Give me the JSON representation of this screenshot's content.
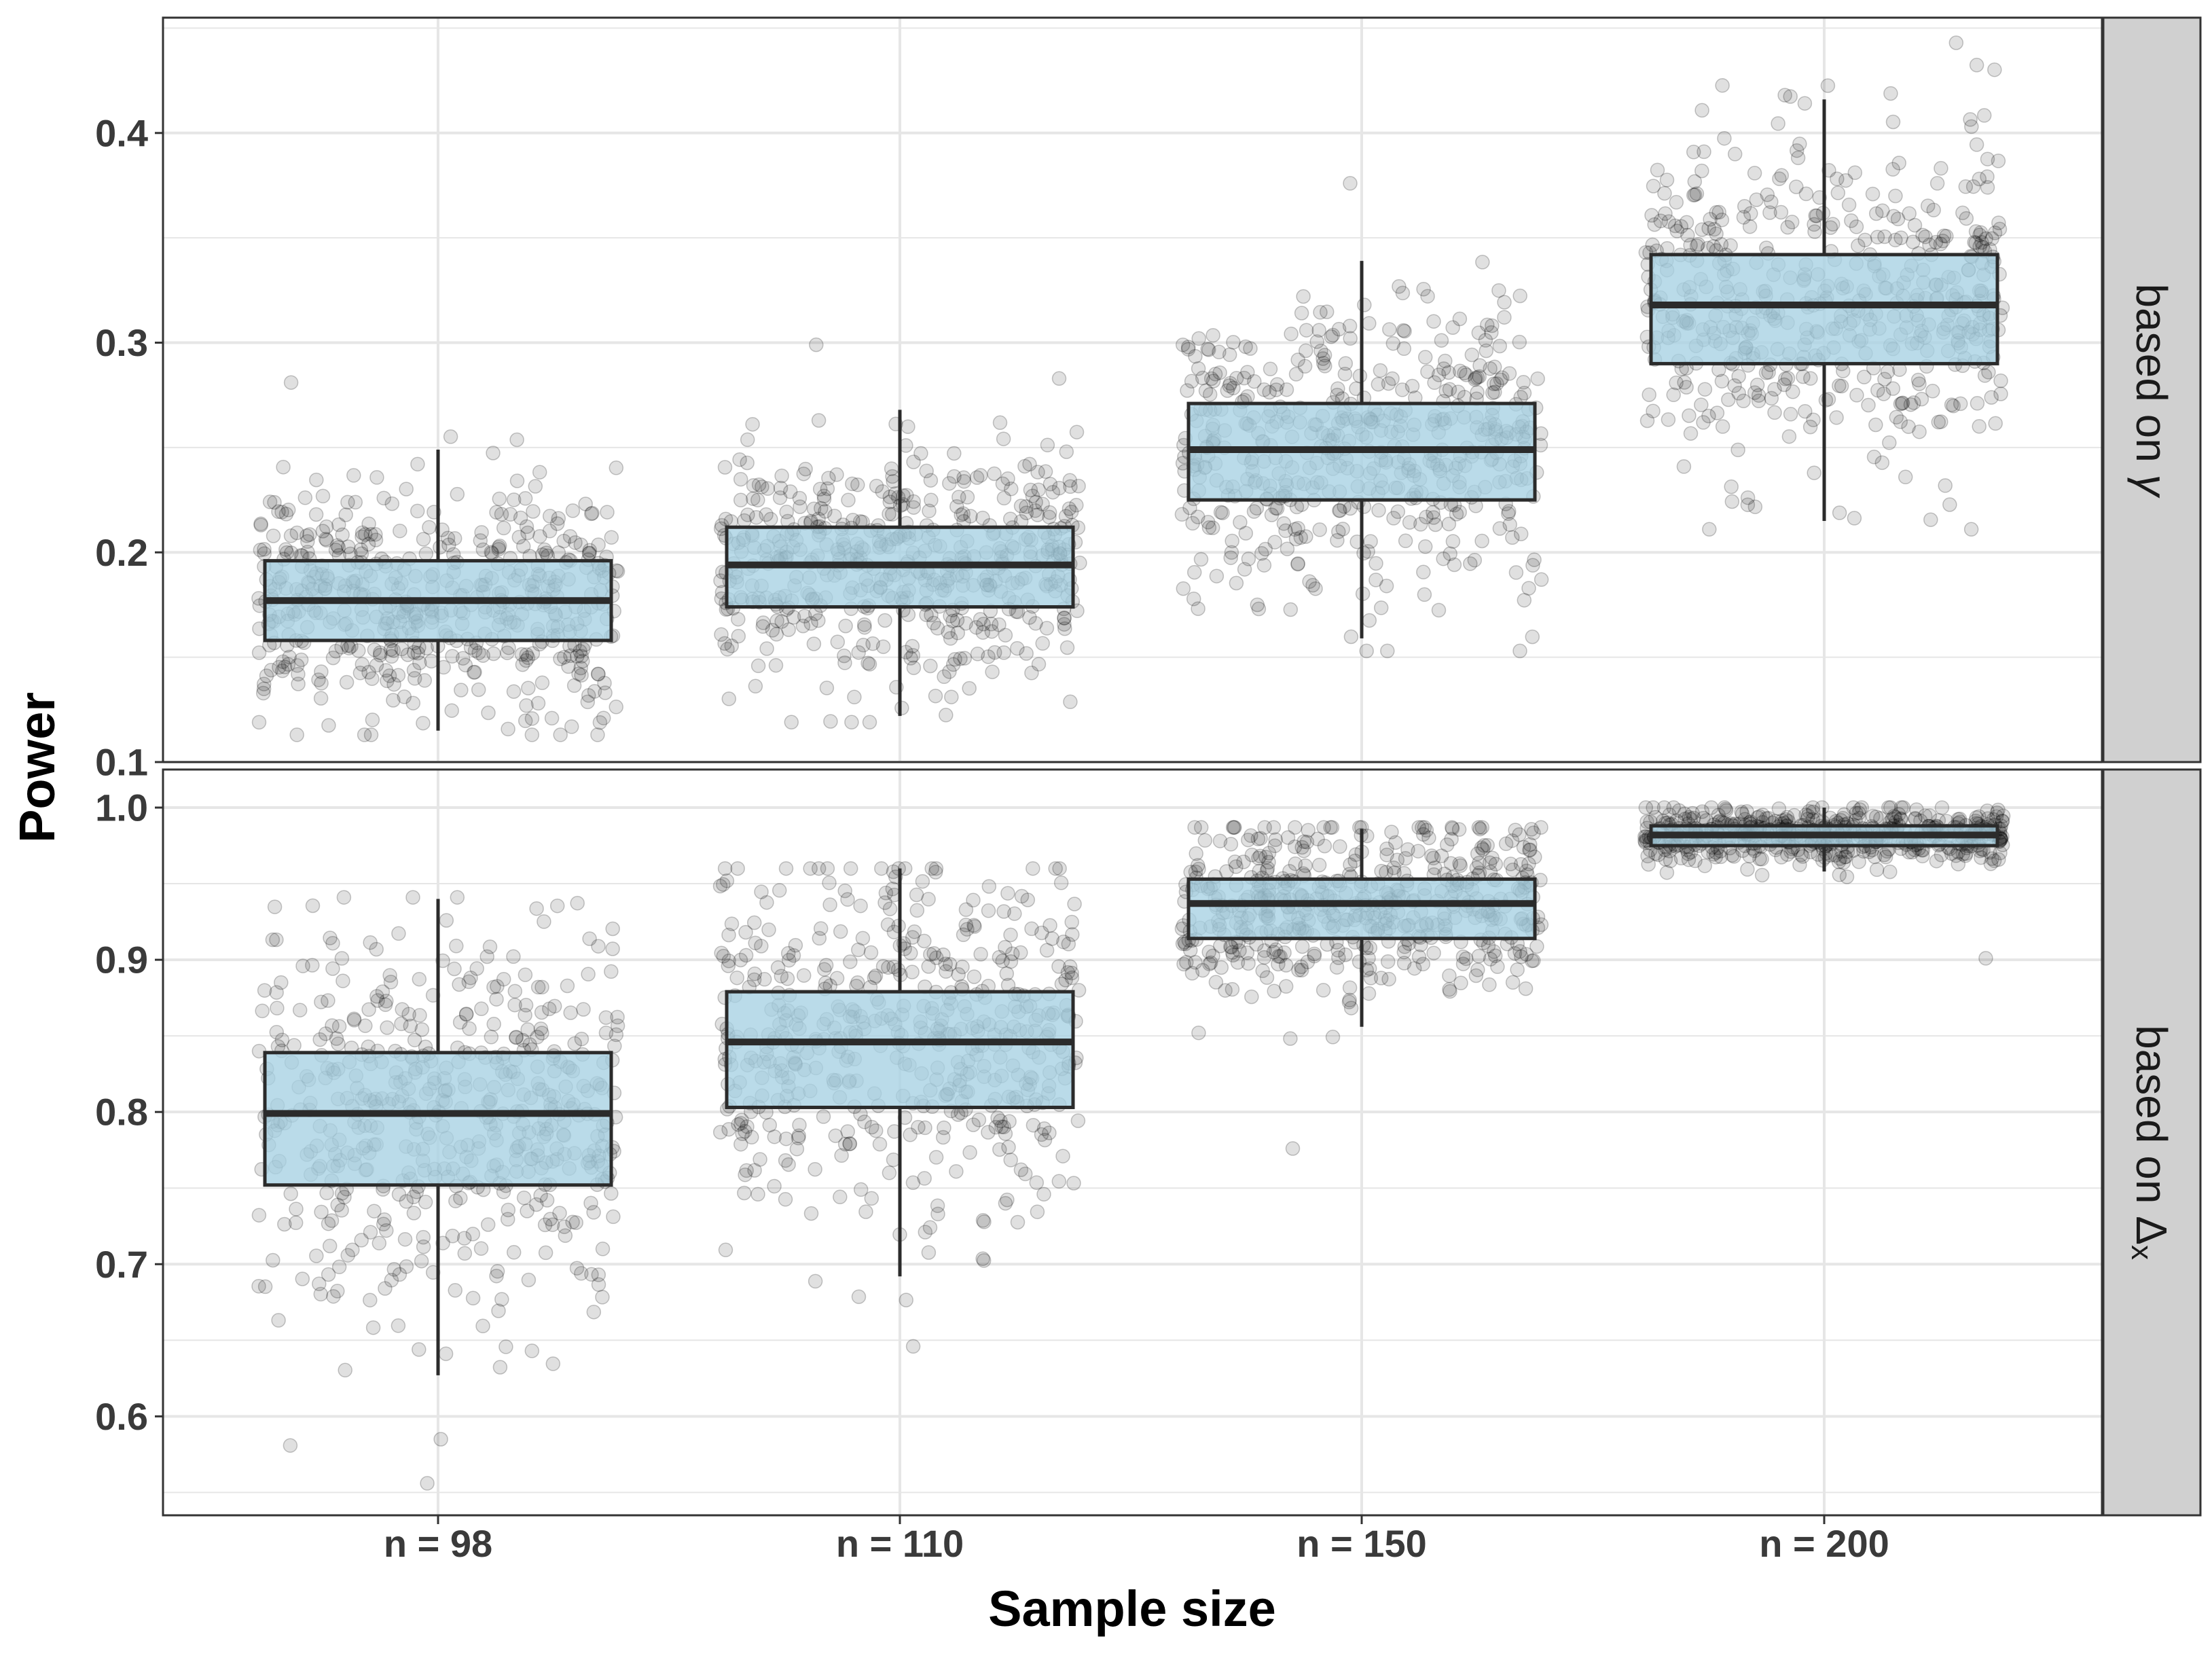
{
  "chart_data": {
    "type": "boxplot",
    "xlabel": "Sample size",
    "ylabel": "Power",
    "categories": [
      "n = 98",
      "n = 110",
      "n = 150",
      "n = 200"
    ],
    "colors": {
      "box_fill": "#a6d1e3",
      "box_stroke": "#2b2b2b",
      "points": "#000000",
      "strip_bg": "#d0d0d0",
      "grid": "#e6e6e6"
    },
    "panels": [
      {
        "strip_main": "based on ",
        "strip_symbol": "γ",
        "strip_sub": "",
        "ylim": [
          0.1,
          0.455
        ],
        "yticks": [
          0.1,
          0.2,
          0.3,
          0.4
        ],
        "tick_labels": [
          "0.1",
          "0.2",
          "0.3",
          "0.4"
        ],
        "boxes": [
          {
            "category": "n = 98",
            "q1": 0.158,
            "median": 0.177,
            "q3": 0.196,
            "whisker_low": 0.115,
            "whisker_high": 0.249,
            "jitter_min": 0.113,
            "jitter_max": 0.281
          },
          {
            "category": "n = 110",
            "q1": 0.174,
            "median": 0.194,
            "q3": 0.212,
            "whisker_low": 0.122,
            "whisker_high": 0.268,
            "jitter_min": 0.119,
            "jitter_max": 0.299
          },
          {
            "category": "n = 150",
            "q1": 0.225,
            "median": 0.249,
            "q3": 0.271,
            "whisker_low": 0.159,
            "whisker_high": 0.339,
            "jitter_min": 0.153,
            "jitter_max": 0.376
          },
          {
            "category": "n = 200",
            "q1": 0.29,
            "median": 0.318,
            "q3": 0.342,
            "whisker_low": 0.215,
            "whisker_high": 0.416,
            "jitter_min": 0.211,
            "jitter_max": 0.443
          }
        ]
      },
      {
        "strip_main": "based on ",
        "strip_symbol": "Δ",
        "strip_sub": "x",
        "ylim": [
          0.535,
          1.025
        ],
        "yticks": [
          0.6,
          0.7,
          0.8,
          0.9,
          1.0
        ],
        "tick_labels": [
          "0.6",
          "0.7",
          "0.8",
          "0.9",
          "1.0"
        ],
        "boxes": [
          {
            "category": "n = 98",
            "q1": 0.752,
            "median": 0.799,
            "q3": 0.839,
            "whisker_low": 0.627,
            "whisker_high": 0.94,
            "jitter_min": 0.556,
            "jitter_max": 0.941
          },
          {
            "category": "n = 110",
            "q1": 0.803,
            "median": 0.846,
            "q3": 0.879,
            "whisker_low": 0.692,
            "whisker_high": 0.96,
            "jitter_min": 0.646,
            "jitter_max": 0.96
          },
          {
            "category": "n = 150",
            "q1": 0.914,
            "median": 0.937,
            "q3": 0.953,
            "whisker_low": 0.856,
            "whisker_high": 0.986,
            "jitter_min": 0.776,
            "jitter_max": 0.987
          },
          {
            "category": "n = 200",
            "q1": 0.975,
            "median": 0.982,
            "q3": 0.988,
            "whisker_low": 0.958,
            "whisker_high": 1.0,
            "jitter_min": 0.901,
            "jitter_max": 1.0
          }
        ]
      }
    ]
  }
}
